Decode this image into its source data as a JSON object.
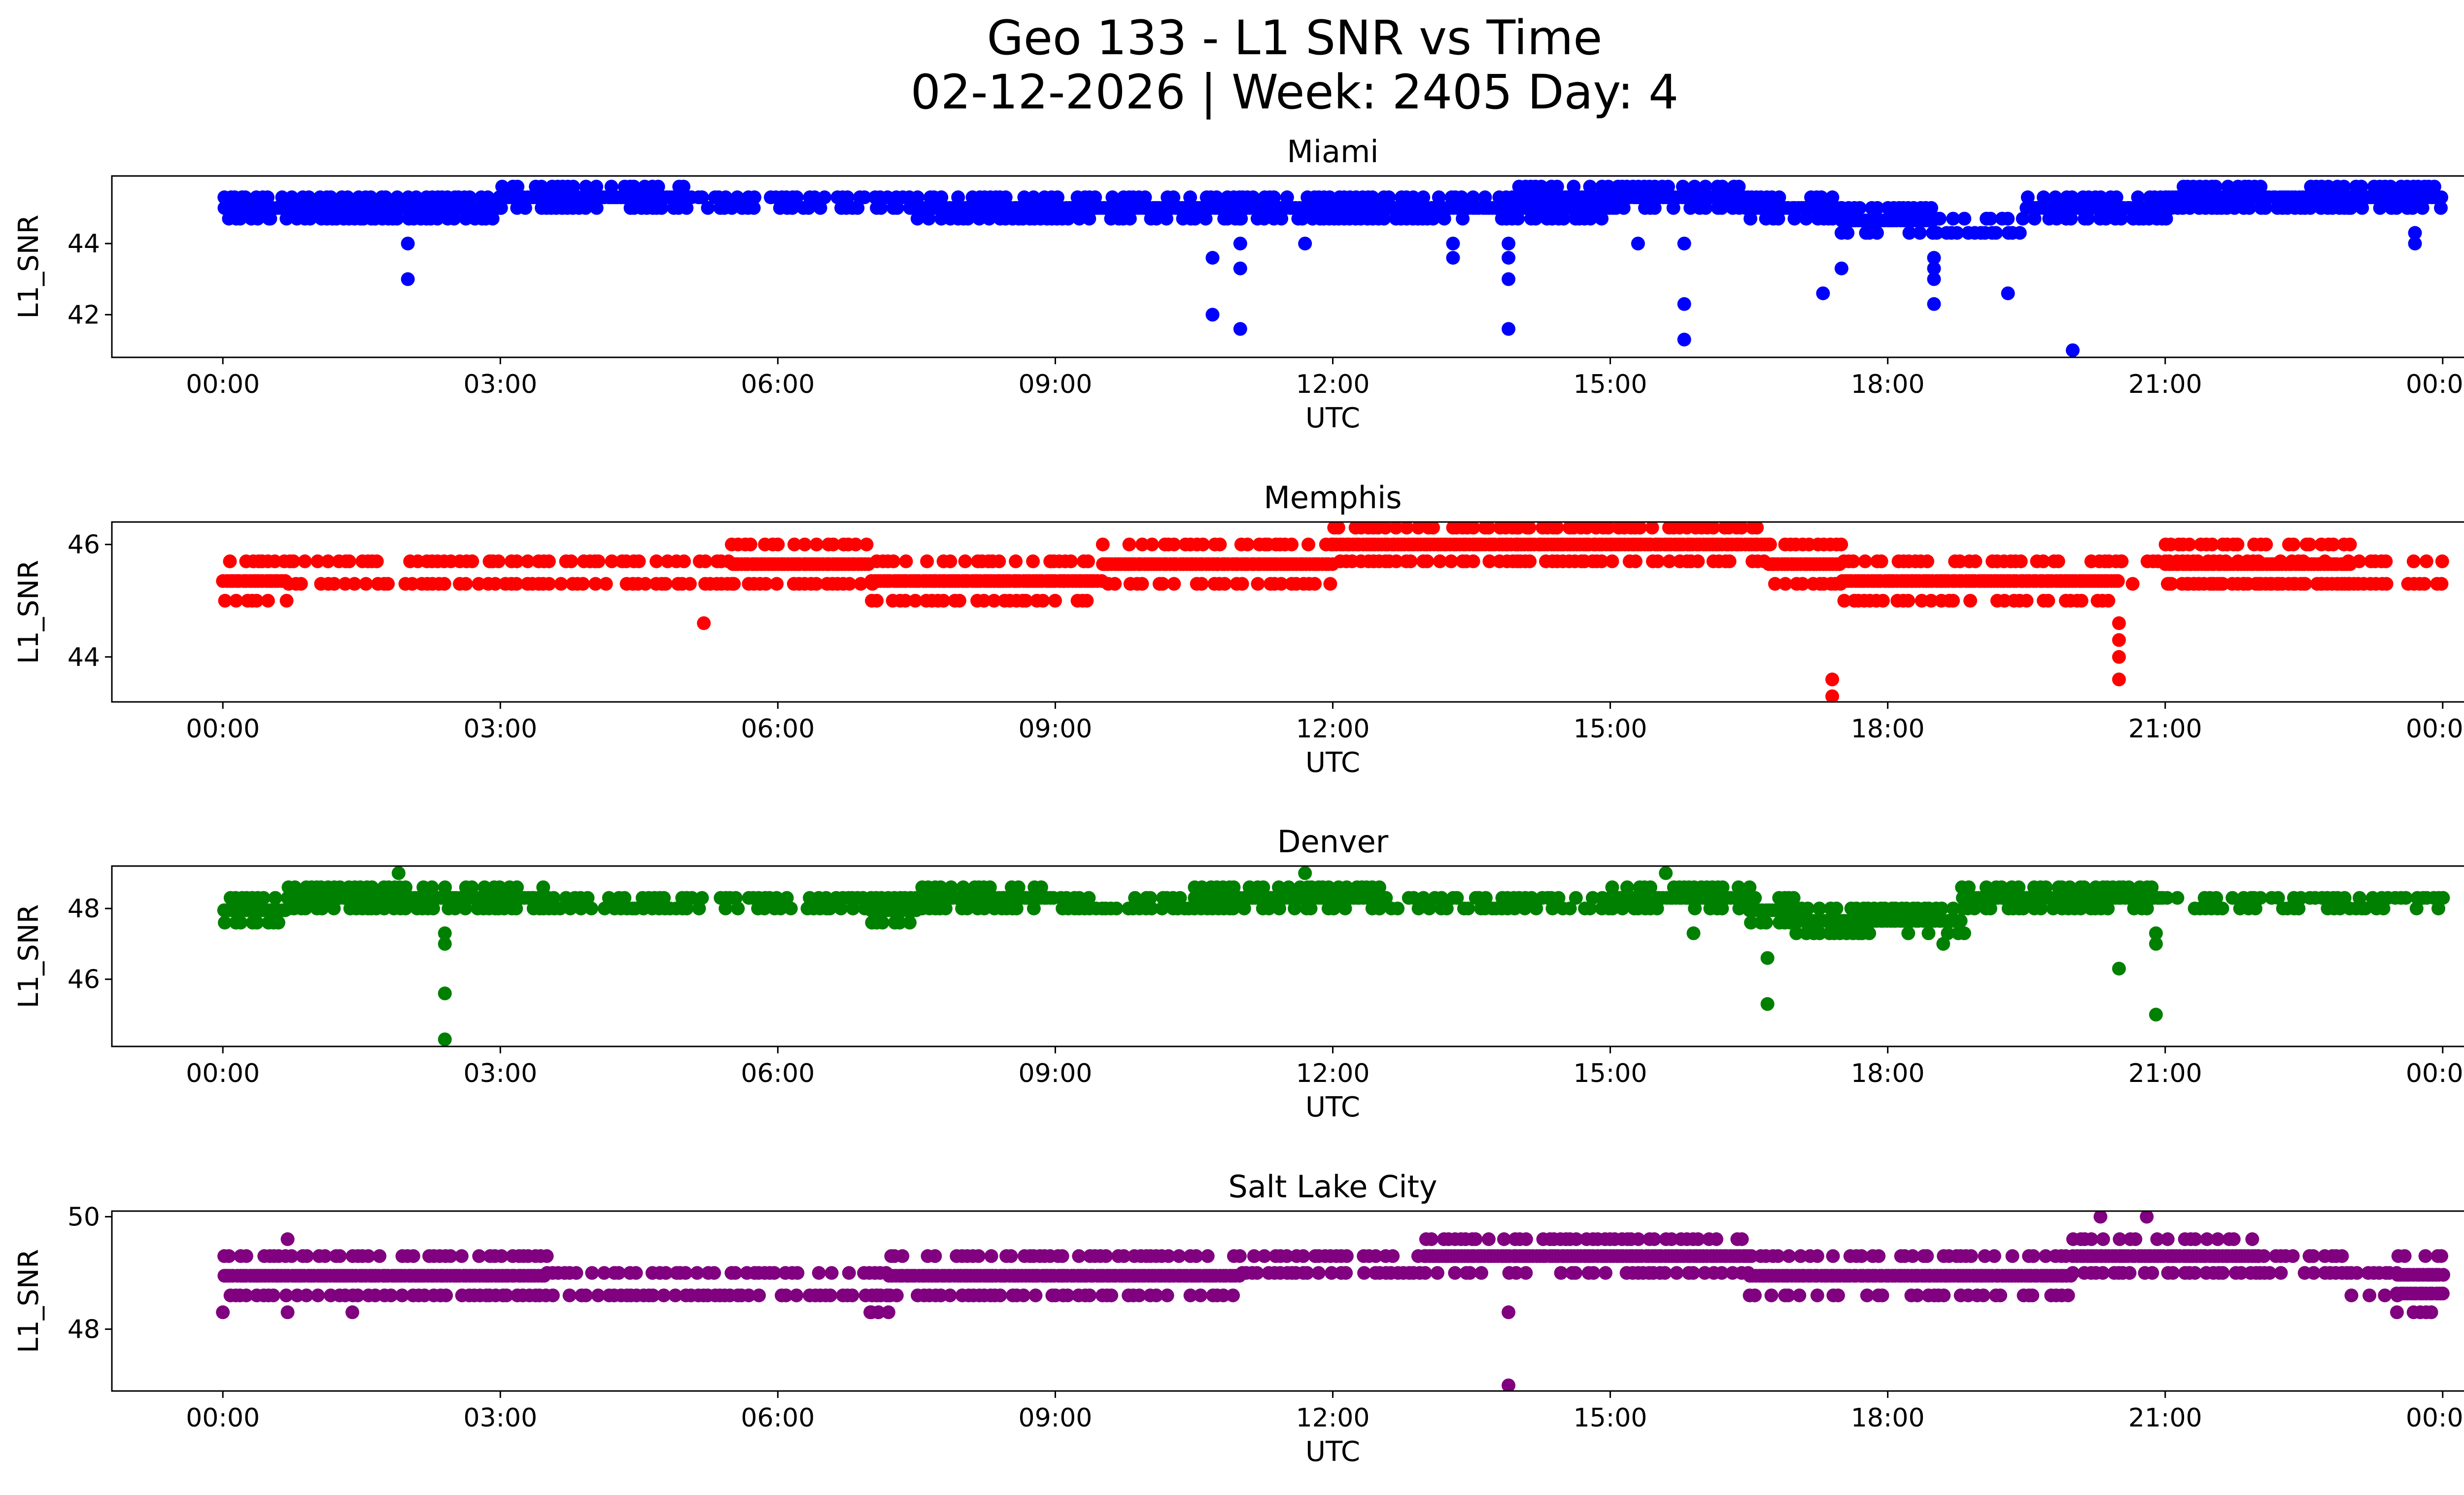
{
  "figure": {
    "title_line1": "Geo 133 - L1 SNR vs Time",
    "title_line2": "02-12-2026 | Week: 2405 Day: 4"
  },
  "chart_data": [
    {
      "type": "scatter",
      "title": "Miami",
      "xlabel": "UTC",
      "ylabel": "L1_SNR",
      "color": "#0000ff",
      "x_range_hours": [
        -1.2,
        25.2
      ],
      "xticks": [
        0,
        3,
        6,
        9,
        12,
        15,
        18,
        21,
        24
      ],
      "xtick_labels": [
        "00:00",
        "03:00",
        "06:00",
        "09:00",
        "12:00",
        "15:00",
        "18:00",
        "21:00",
        "00:00"
      ],
      "ylim": [
        40.8,
        45.9
      ],
      "yticks": [
        42,
        44
      ],
      "base_segments": [
        [
          0.0,
          0.5,
          44.7,
          45.3
        ],
        [
          0.5,
          3.0,
          44.7,
          45.3
        ],
        [
          3.0,
          5.0,
          45.0,
          45.6
        ],
        [
          5.0,
          7.5,
          45.0,
          45.3
        ],
        [
          7.5,
          9.0,
          44.7,
          45.3
        ],
        [
          9.0,
          11.0,
          44.7,
          45.3
        ],
        [
          11.0,
          12.0,
          44.7,
          45.3
        ],
        [
          12.0,
          14.0,
          44.7,
          45.3
        ],
        [
          14.0,
          15.0,
          44.7,
          45.6
        ],
        [
          15.0,
          16.5,
          45.0,
          45.6
        ],
        [
          16.5,
          17.5,
          44.7,
          45.3
        ],
        [
          17.5,
          18.5,
          44.3,
          45.0
        ],
        [
          18.5,
          19.5,
          44.3,
          44.7
        ],
        [
          19.5,
          21.0,
          44.7,
          45.3
        ],
        [
          21.0,
          23.0,
          45.0,
          45.6
        ],
        [
          23.0,
          24.0,
          45.0,
          45.6
        ]
      ],
      "outliers": [
        [
          2.0,
          44.0
        ],
        [
          2.0,
          43.0
        ],
        [
          10.7,
          43.6
        ],
        [
          10.7,
          42.0
        ],
        [
          11.0,
          44.0
        ],
        [
          11.0,
          43.3
        ],
        [
          11.0,
          41.6
        ],
        [
          11.7,
          44.0
        ],
        [
          13.3,
          44.0
        ],
        [
          13.3,
          43.6
        ],
        [
          13.9,
          44.0
        ],
        [
          13.9,
          43.6
        ],
        [
          13.9,
          43.0
        ],
        [
          13.9,
          41.6
        ],
        [
          15.3,
          44.0
        ],
        [
          15.8,
          44.0
        ],
        [
          15.8,
          42.3
        ],
        [
          15.8,
          41.3
        ],
        [
          17.3,
          42.6
        ],
        [
          17.5,
          43.3
        ],
        [
          18.5,
          43.6
        ],
        [
          18.5,
          43.3
        ],
        [
          18.5,
          43.0
        ],
        [
          18.5,
          42.3
        ],
        [
          19.3,
          42.6
        ],
        [
          20.0,
          41.0
        ],
        [
          23.7,
          44.0
        ],
        [
          23.7,
          44.3
        ]
      ]
    },
    {
      "type": "scatter",
      "title": "Memphis",
      "xlabel": "UTC",
      "ylabel": "L1_SNR",
      "color": "#ff0000",
      "x_range_hours": [
        -1.2,
        25.2
      ],
      "xticks": [
        0,
        3,
        6,
        9,
        12,
        15,
        18,
        21,
        24
      ],
      "xtick_labels": [
        "00:00",
        "03:00",
        "06:00",
        "09:00",
        "12:00",
        "15:00",
        "18:00",
        "21:00",
        "00:00"
      ],
      "ylim": [
        43.2,
        46.4
      ],
      "yticks": [
        44,
        46
      ],
      "base_segments": [
        [
          0.0,
          0.7,
          45.0,
          45.7
        ],
        [
          0.7,
          2.5,
          45.3,
          45.7
        ],
        [
          2.5,
          5.5,
          45.3,
          45.7
        ],
        [
          5.5,
          7.0,
          45.3,
          46.0
        ],
        [
          7.0,
          9.5,
          45.0,
          45.7
        ],
        [
          9.5,
          12.0,
          45.3,
          46.0
        ],
        [
          12.0,
          14.0,
          45.7,
          46.3
        ],
        [
          14.0,
          16.7,
          45.7,
          46.3
        ],
        [
          16.7,
          17.5,
          45.3,
          46.0
        ],
        [
          17.5,
          20.5,
          45.0,
          45.7
        ],
        [
          20.5,
          24.0,
          45.3,
          45.7
        ],
        [
          21.0,
          23.0,
          45.3,
          46.0
        ]
      ],
      "outliers": [
        [
          5.2,
          44.6
        ],
        [
          17.4,
          43.6
        ],
        [
          17.4,
          43.3
        ],
        [
          20.5,
          44.6
        ],
        [
          20.5,
          44.3
        ],
        [
          20.5,
          44.0
        ],
        [
          20.5,
          43.6
        ],
        [
          13.3,
          46.3
        ],
        [
          14.1,
          46.3
        ]
      ]
    },
    {
      "type": "scatter",
      "title": "Denver",
      "xlabel": "UTC",
      "ylabel": "L1_SNR",
      "color": "#008000",
      "x_range_hours": [
        -1.2,
        25.2
      ],
      "xticks": [
        0,
        3,
        6,
        9,
        12,
        15,
        18,
        21,
        24
      ],
      "xtick_labels": [
        "00:00",
        "03:00",
        "06:00",
        "09:00",
        "12:00",
        "15:00",
        "18:00",
        "21:00",
        "00:00"
      ],
      "ylim": [
        44.1,
        49.2
      ],
      "yticks": [
        46,
        48
      ],
      "base_segments": [
        [
          0.0,
          0.7,
          47.6,
          48.3
        ],
        [
          0.7,
          3.5,
          48.0,
          48.6
        ],
        [
          3.5,
          7.0,
          48.0,
          48.3
        ],
        [
          7.0,
          7.5,
          47.6,
          48.3
        ],
        [
          7.5,
          9.0,
          48.0,
          48.6
        ],
        [
          9.0,
          10.5,
          48.0,
          48.3
        ],
        [
          10.5,
          12.5,
          48.0,
          48.6
        ],
        [
          12.5,
          15.0,
          48.0,
          48.3
        ],
        [
          15.0,
          16.5,
          48.0,
          48.6
        ],
        [
          16.5,
          17.0,
          47.6,
          48.3
        ],
        [
          17.0,
          18.8,
          47.3,
          48.0
        ],
        [
          18.8,
          21.0,
          48.0,
          48.6
        ],
        [
          21.0,
          24.0,
          48.0,
          48.3
        ]
      ],
      "outliers": [
        [
          1.9,
          49.0
        ],
        [
          2.4,
          47.3
        ],
        [
          2.4,
          47.0
        ],
        [
          2.4,
          45.6
        ],
        [
          2.4,
          44.3
        ],
        [
          11.7,
          49.0
        ],
        [
          15.6,
          49.0
        ],
        [
          15.9,
          47.3
        ],
        [
          16.7,
          46.6
        ],
        [
          16.7,
          45.3
        ],
        [
          20.5,
          46.3
        ],
        [
          20.9,
          47.3
        ],
        [
          20.9,
          47.0
        ],
        [
          20.9,
          45.0
        ],
        [
          18.6,
          47.0
        ]
      ]
    },
    {
      "type": "scatter",
      "title": "Salt Lake City",
      "xlabel": "UTC",
      "ylabel": "L1_SNR",
      "color": "#800080",
      "x_range_hours": [
        -1.2,
        25.2
      ],
      "xticks": [
        0,
        3,
        6,
        9,
        12,
        15,
        18,
        21,
        24
      ],
      "xtick_labels": [
        "00:00",
        "03:00",
        "06:00",
        "09:00",
        "12:00",
        "15:00",
        "18:00",
        "21:00",
        "00:00"
      ],
      "ylim": [
        46.9,
        50.1
      ],
      "yticks": [
        48,
        50
      ],
      "base_segments": [
        [
          0.0,
          3.5,
          48.6,
          49.3
        ],
        [
          3.5,
          7.2,
          48.6,
          49.0
        ],
        [
          7.0,
          7.2,
          48.3,
          48.6
        ],
        [
          7.2,
          11.0,
          48.6,
          49.3
        ],
        [
          11.0,
          13.0,
          49.0,
          49.3
        ],
        [
          13.0,
          14.5,
          49.0,
          49.6
        ],
        [
          14.5,
          16.5,
          49.0,
          49.6
        ],
        [
          16.5,
          20.0,
          48.6,
          49.3
        ],
        [
          20.0,
          22.0,
          49.0,
          49.6
        ],
        [
          22.0,
          23.0,
          49.0,
          49.3
        ],
        [
          23.0,
          23.5,
          48.6,
          49.0
        ],
        [
          23.5,
          24.0,
          48.3,
          49.3
        ]
      ],
      "outliers": [
        [
          0.0,
          48.3
        ],
        [
          0.7,
          49.6
        ],
        [
          0.7,
          48.3
        ],
        [
          1.4,
          48.3
        ],
        [
          7.0,
          48.3
        ],
        [
          13.9,
          48.3
        ],
        [
          13.9,
          47.0
        ],
        [
          20.3,
          50.0
        ],
        [
          20.8,
          50.0
        ]
      ]
    }
  ]
}
